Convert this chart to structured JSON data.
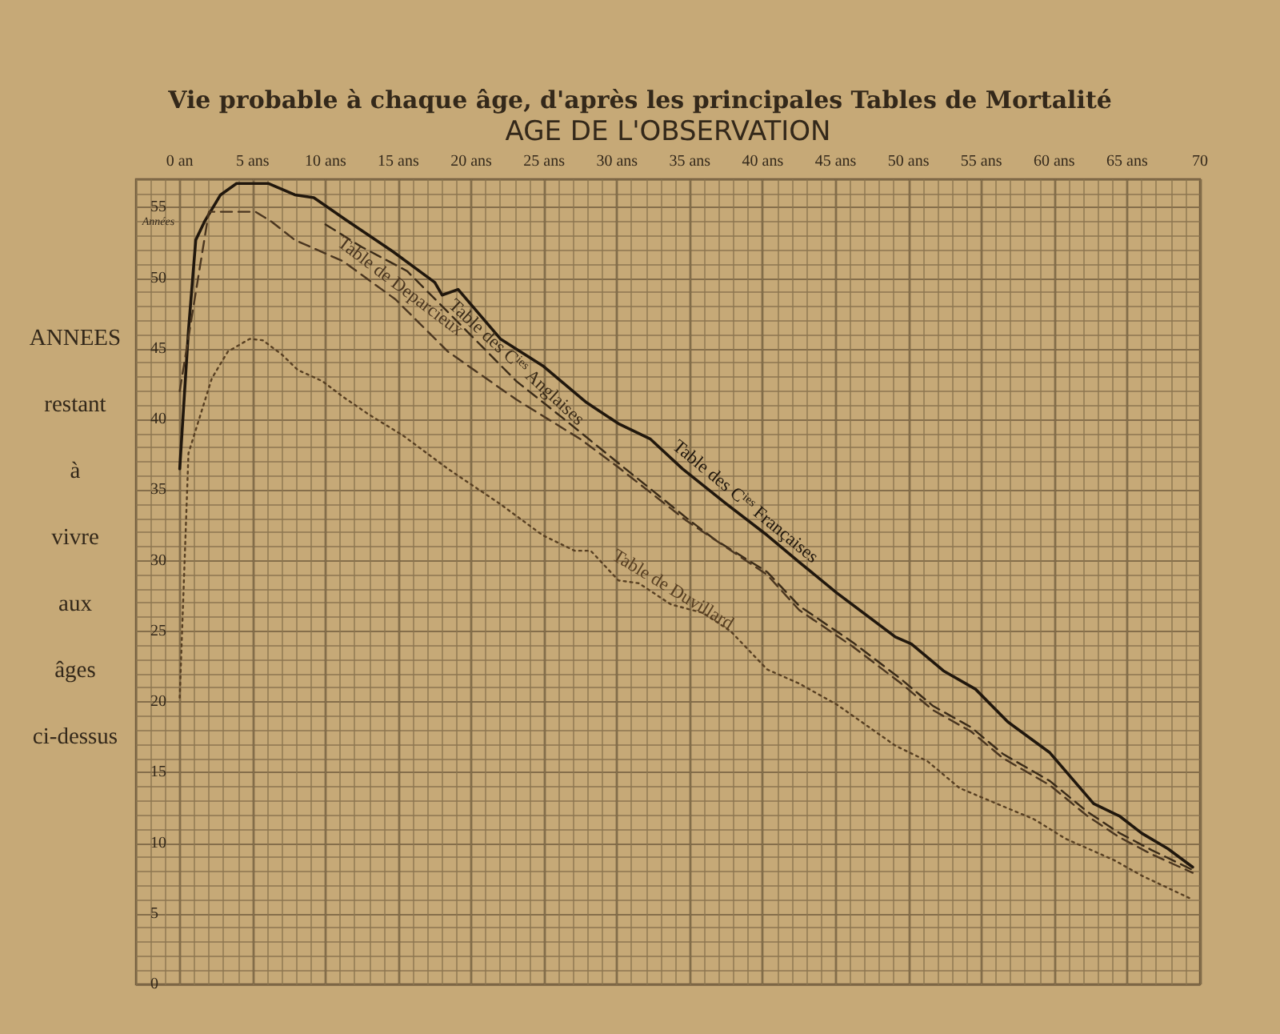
{
  "chart_data": {
    "type": "line",
    "title": "Vie probable à chaque âge, d'après les principales Tables de Mortalité",
    "xlabel": "AGE DE L'OBSERVATION",
    "ylabel": "ANNEES restant à vivre aux âges ci-dessus",
    "annotations": [
      "Années"
    ],
    "xlim": [
      -3,
      70
    ],
    "xticks": [
      {
        "value": 0,
        "label": "0 an"
      },
      {
        "value": 5,
        "label": "5 ans"
      },
      {
        "value": 10,
        "label": "10 ans"
      },
      {
        "value": 15,
        "label": "15 ans"
      },
      {
        "value": 20,
        "label": "20 ans"
      },
      {
        "value": 25,
        "label": "25 ans"
      },
      {
        "value": 30,
        "label": "30 ans"
      },
      {
        "value": 35,
        "label": "35 ans"
      },
      {
        "value": 40,
        "label": "40 ans"
      },
      {
        "value": 45,
        "label": "45 ans"
      },
      {
        "value": 50,
        "label": "50 ans"
      },
      {
        "value": 55,
        "label": "55 ans"
      },
      {
        "value": 60,
        "label": "60 ans"
      },
      {
        "value": 65,
        "label": "65 ans"
      },
      70
    ],
    "ylim": [
      0,
      57
    ],
    "yticks": [
      0,
      5,
      10,
      15,
      20,
      25,
      30,
      35,
      40,
      45,
      50,
      55
    ],
    "grid": true,
    "marker": "none",
    "series": [
      {
        "name": "Table des C$^{ies}$ Françaises",
        "color": "#20170d",
        "line_style": "solid",
        "x": [
          0,
          0.6,
          1.1,
          1.7,
          2.8,
          3.9,
          6.1,
          7.9,
          9.2,
          11.3,
          14.6,
          17.5,
          18,
          19.1,
          22,
          24.9,
          27.9,
          30.1,
          32.3,
          34.5,
          37.4,
          40.3,
          42.5,
          45.1,
          49.1,
          50.2,
          52.4,
          54.6,
          56.8,
          59.7,
          62.7,
          64.5,
          66,
          67.8,
          69.5
        ],
        "values": [
          36.5,
          46.3,
          52.7,
          54,
          55.9,
          56.7,
          56.7,
          55.9,
          55.7,
          54.2,
          51.9,
          49.7,
          48.8,
          49.2,
          45.7,
          43.8,
          41.2,
          39.7,
          38.6,
          36.5,
          34.1,
          31.8,
          29.9,
          27.7,
          24.6,
          24.1,
          22.2,
          20.9,
          18.6,
          16.4,
          12.8,
          11.9,
          10.7,
          9.6,
          8.3
        ]
      },
      {
        "name": "Table des C$^{ies}$ Anglaises",
        "color": "#3a2b18",
        "line_style": "dashed",
        "x": [
          10,
          12.5,
          15.6,
          18.4,
          23.1,
          26.4,
          30.1,
          34.8,
          36.7,
          40.3,
          42.5,
          46.2,
          49.5,
          51.7,
          54.3,
          56.5,
          59.7,
          62.3,
          64.5,
          66.7,
          69.5
        ],
        "values": [
          53.8,
          52.2,
          50.5,
          47.6,
          42.7,
          40,
          36.9,
          33,
          31.5,
          29.2,
          26.8,
          24.2,
          21.6,
          19.7,
          18.2,
          16.3,
          14.4,
          12.2,
          10.7,
          9.5,
          8.1
        ]
      },
      {
        "name": "Table de Deparcieux",
        "color": "#4a3620",
        "line_style": "dashed",
        "x": [
          0,
          2,
          5.2,
          6.3,
          7.9,
          11.2,
          14.8,
          18.4,
          23.1,
          27.5,
          30.1,
          34.8,
          40.3,
          42.5,
          46.2,
          49.5,
          51.7,
          54.3,
          56.5,
          59.7,
          62.3,
          64.5,
          66.7,
          69.5
        ],
        "values": [
          42,
          54.7,
          54.7,
          54,
          52.7,
          51.2,
          48.5,
          44.8,
          41.4,
          38.6,
          36.6,
          32.8,
          29,
          26.5,
          23.9,
          21.3,
          19.4,
          17.9,
          16,
          14.1,
          11.9,
          10.4,
          9.2,
          7.9
        ]
      },
      {
        "name": "Table de Duvillard",
        "color": "#573f22",
        "line_style": "dotted",
        "x": [
          0,
          0.6,
          2.2,
          3.3,
          4.8,
          5.7,
          7,
          8.1,
          9.8,
          11.2,
          12.9,
          15.4,
          18.4,
          22,
          24.9,
          27.1,
          28.2,
          30.1,
          31.5,
          33.7,
          35.9,
          37.8,
          40.3,
          42.5,
          45.1,
          49.1,
          51.3,
          53.5,
          56.5,
          58.6,
          60.8,
          64.1,
          66,
          69.5
        ],
        "values": [
          20.3,
          37.6,
          42.9,
          44.8,
          45.7,
          45.6,
          44.6,
          43.5,
          42.7,
          41.6,
          40.4,
          38.8,
          36.5,
          34,
          31.8,
          30.7,
          30.7,
          28.6,
          28.4,
          26.9,
          26.3,
          25,
          22.3,
          21.3,
          19.8,
          16.9,
          15.8,
          13.9,
          12.6,
          11.7,
          10.3,
          8.8,
          7.7,
          6
        ]
      }
    ]
  }
}
